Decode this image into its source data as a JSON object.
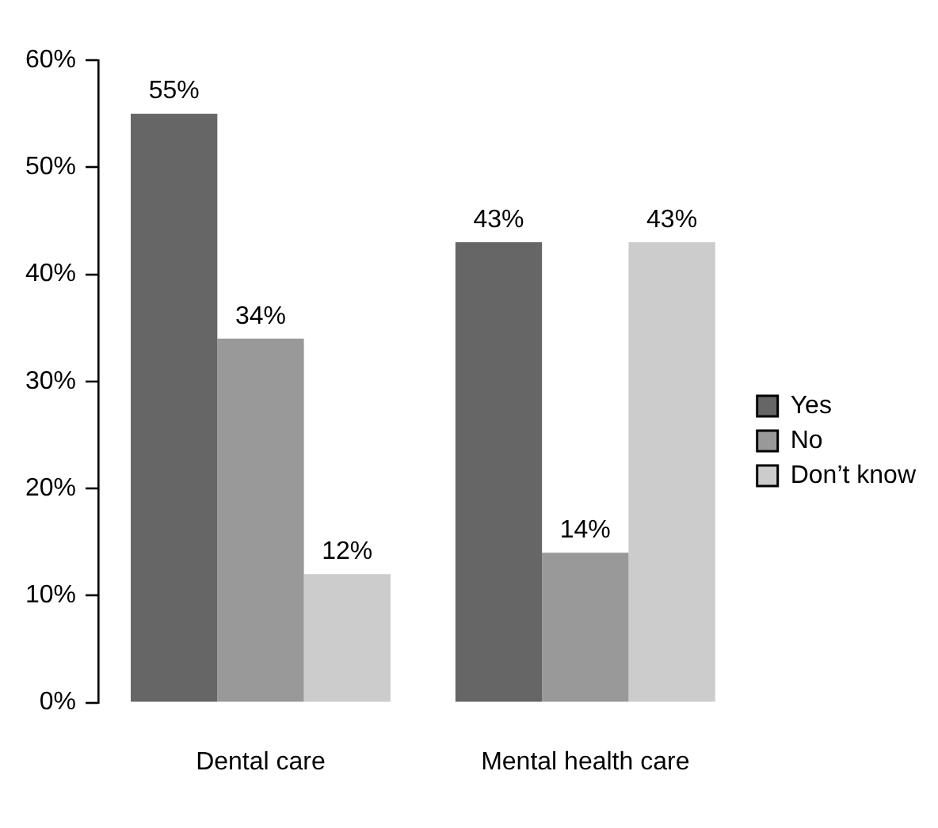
{
  "chart_data": {
    "type": "bar",
    "categories": [
      "Dental care",
      "Mental health care"
    ],
    "series": [
      {
        "name": "Yes",
        "color": "#666666",
        "values": [
          55,
          43
        ],
        "value_labels": [
          "55%",
          "43%"
        ]
      },
      {
        "name": "No",
        "color": "#999999",
        "values": [
          34,
          14
        ],
        "value_labels": [
          "34%",
          "14%"
        ]
      },
      {
        "name": "Don’t know",
        "color": "#cccccc",
        "values": [
          12,
          43
        ],
        "value_labels": [
          "12%",
          "43%"
        ]
      }
    ],
    "ylim": [
      0,
      60
    ],
    "yticks": [
      {
        "value": 0,
        "label": "0%"
      },
      {
        "value": 10,
        "label": "10%"
      },
      {
        "value": 20,
        "label": "20%"
      },
      {
        "value": 30,
        "label": "30%"
      },
      {
        "value": 40,
        "label": "40%"
      },
      {
        "value": 50,
        "label": "50%"
      },
      {
        "value": 60,
        "label": "60%"
      }
    ],
    "grid": false,
    "legend": "right"
  }
}
